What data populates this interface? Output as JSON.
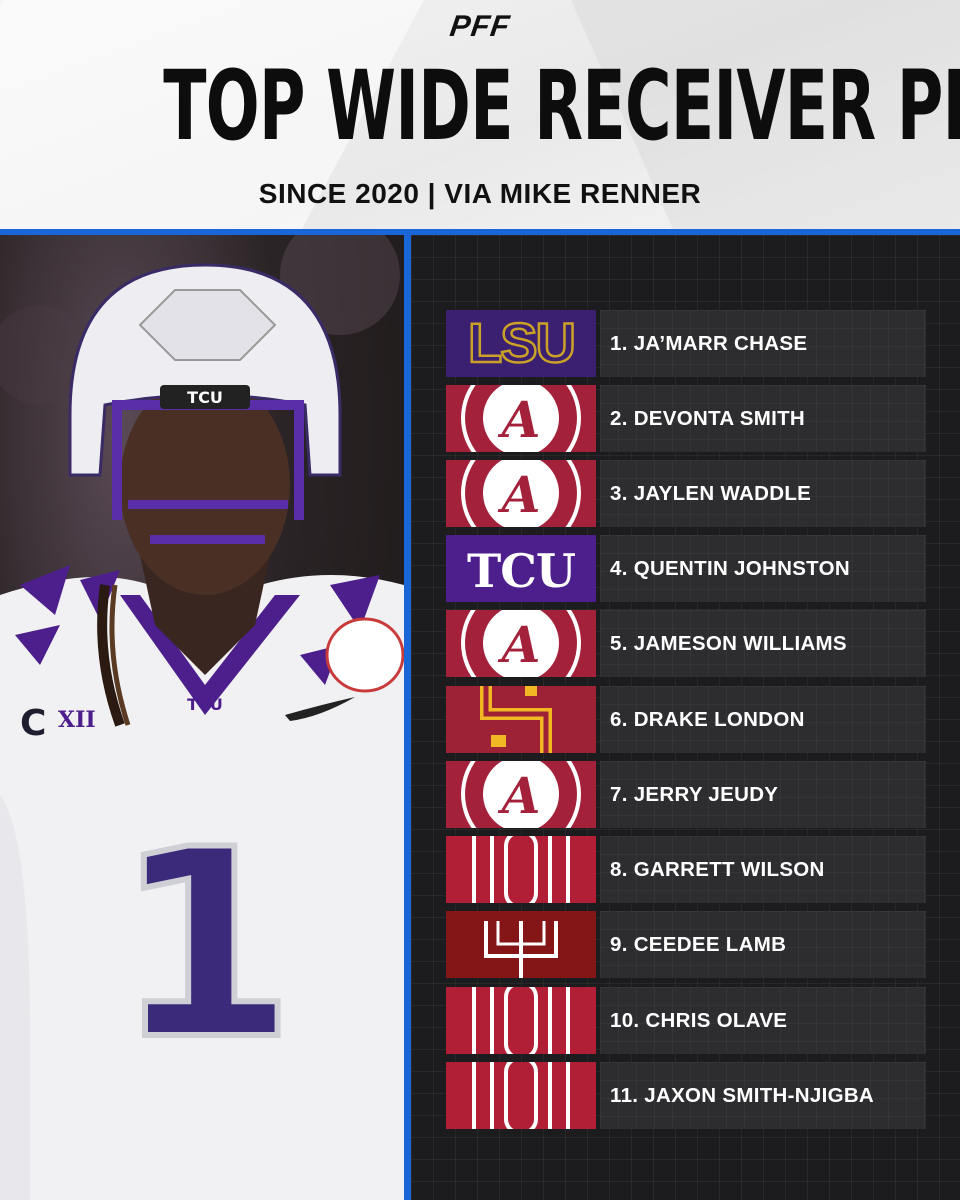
{
  "header": {
    "brand": "PFF",
    "title": "TOP WIDE RECEIVER PROSPECTS",
    "subtitle": "SINCE 2020 | VIA MIKE RENNER"
  },
  "photo": {
    "helmet_text": "TCU",
    "chest_text": "TCU",
    "jersey_number": "1",
    "captain_patch": "C",
    "conference_patch": "XII"
  },
  "colors": {
    "accent": "#1b66d6",
    "lsu_purple": "#3b1f70",
    "lsu_gold": "#c9a227",
    "alabama_crimson": "#a3213a",
    "tcu_purple": "#4d1f8c",
    "usc_cardinal": "#9d2235",
    "usc_gold": "#f2b824",
    "ohio_state_scarlet": "#b11f36",
    "oklahoma_crimson": "#841617"
  },
  "prospects": [
    {
      "label": "1. JA’MARR CHASE",
      "school_logo": "lsu-logo",
      "logo_text": "LSU"
    },
    {
      "label": "2. DEVONTA SMITH",
      "school_logo": "alabama-logo",
      "logo_text": "A"
    },
    {
      "label": "3. JAYLEN WADDLE",
      "school_logo": "alabama-logo",
      "logo_text": "A"
    },
    {
      "label": "4. QUENTIN JOHNSTON",
      "school_logo": "tcu-logo",
      "logo_text": "TCU"
    },
    {
      "label": "5. JAMESON WILLIAMS",
      "school_logo": "alabama-logo",
      "logo_text": "A"
    },
    {
      "label": "6. DRAKE LONDON",
      "school_logo": "usc-logo",
      "logo_text": ""
    },
    {
      "label": "7. JERRY JEUDY",
      "school_logo": "alabama-logo",
      "logo_text": "A"
    },
    {
      "label": "8. GARRETT WILSON",
      "school_logo": "ohio-state-logo",
      "logo_text": ""
    },
    {
      "label": "9. CEEDEE LAMB",
      "school_logo": "oklahoma-logo",
      "logo_text": ""
    },
    {
      "label": "10. CHRIS OLAVE",
      "school_logo": "ohio-state-logo",
      "logo_text": ""
    },
    {
      "label": "11. JAXON SMITH-NJIGBA",
      "school_logo": "ohio-state-logo",
      "logo_text": ""
    }
  ]
}
